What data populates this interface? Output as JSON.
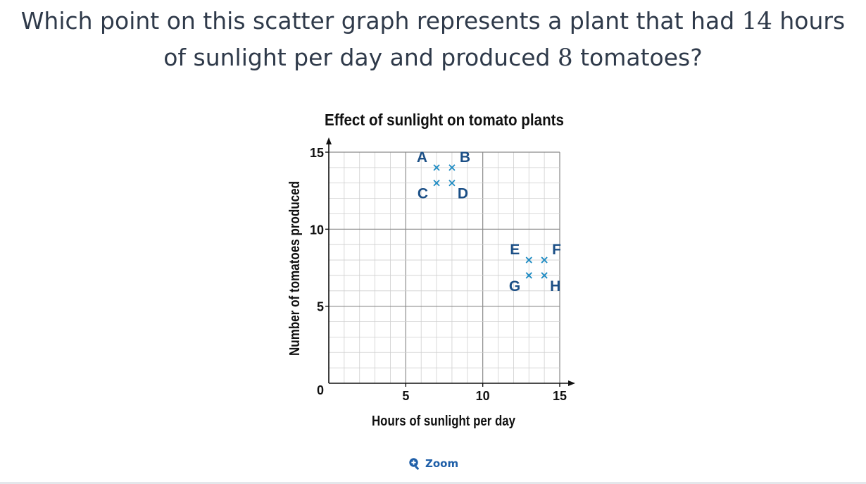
{
  "question": {
    "part1": "Which point on this scatter graph represents a plant that had ",
    "num1": "14",
    "part2": " hours",
    "part3": "of sunlight per day and produced ",
    "num2": "8",
    "part4": " tomatoes?"
  },
  "chart_data": {
    "type": "scatter",
    "title": "Effect of sunlight on tomato plants",
    "xlabel": "Hours of sunlight per day",
    "ylabel": "Number of tomatoes produced",
    "xlim": [
      0,
      15
    ],
    "ylim": [
      0,
      15
    ],
    "xticks": [
      "5",
      "10",
      "15"
    ],
    "yticks": [
      "5",
      "10",
      "15"
    ],
    "origin_label": "0",
    "grid": true,
    "marker": "x",
    "marker_color": "#1e8bc3",
    "label_color": "#1b4f86",
    "points": [
      {
        "label": "A",
        "x": 7,
        "y": 14,
        "label_pos": "top-left"
      },
      {
        "label": "B",
        "x": 8,
        "y": 14,
        "label_pos": "top-right"
      },
      {
        "label": "C",
        "x": 7,
        "y": 13,
        "label_pos": "bottom-left"
      },
      {
        "label": "D",
        "x": 8,
        "y": 13,
        "label_pos": "bottom-right"
      },
      {
        "label": "E",
        "x": 13,
        "y": 8,
        "label_pos": "top-left"
      },
      {
        "label": "F",
        "x": 14,
        "y": 8,
        "label_pos": "top-right"
      },
      {
        "label": "G",
        "x": 13,
        "y": 7,
        "label_pos": "bottom-left"
      },
      {
        "label": "H",
        "x": 14,
        "y": 7,
        "label_pos": "bottom-right"
      }
    ]
  },
  "zoom": {
    "label": "Zoom",
    "icon": "zoom-in-icon",
    "color": "#1f5fa8"
  }
}
